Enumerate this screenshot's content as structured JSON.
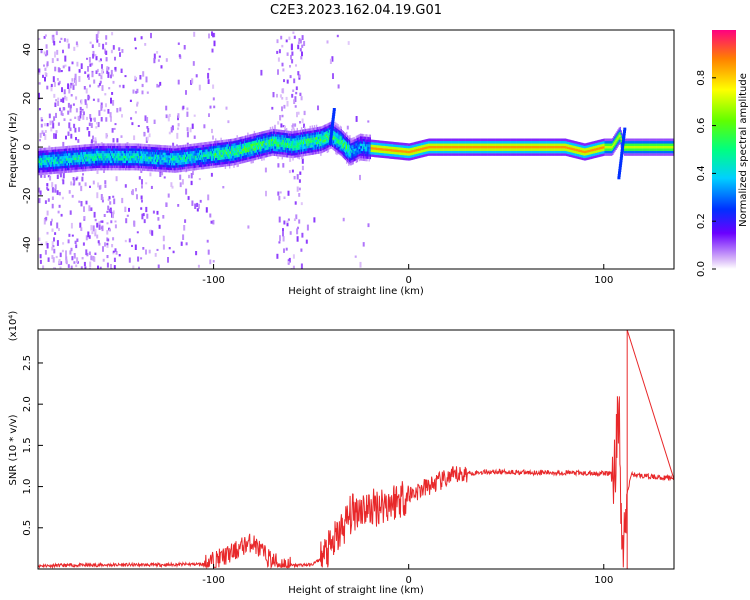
{
  "title": "C2E3.2023.162.04.19.G01",
  "chart_data": [
    {
      "type": "heatmap",
      "xlabel": "Height of straight line (km)",
      "ylabel": "Frequency (Hz)",
      "xlim": [
        -190,
        136
      ],
      "ylim": [
        -50,
        48
      ],
      "xticks": [
        -100,
        0,
        100
      ],
      "yticks": [
        -40,
        -20,
        0,
        20,
        40
      ],
      "colorbar": {
        "label": "Normalized spectral amplitude",
        "range": [
          0.0,
          1.0
        ],
        "ticks": [
          "0.0",
          "0.2",
          "0.4",
          "0.6",
          "0.8"
        ],
        "colormap": "rainbow"
      },
      "ridge": [
        {
          "x": -190,
          "y": -6
        },
        {
          "x": -160,
          "y": -4
        },
        {
          "x": -140,
          "y": -4
        },
        {
          "x": -120,
          "y": -5
        },
        {
          "x": -100,
          "y": -3
        },
        {
          "x": -90,
          "y": -2
        },
        {
          "x": -80,
          "y": 0
        },
        {
          "x": -70,
          "y": 2
        },
        {
          "x": -60,
          "y": 1
        },
        {
          "x": -45,
          "y": 3
        },
        {
          "x": -40,
          "y": 5
        },
        {
          "x": -35,
          "y": 2
        },
        {
          "x": -30,
          "y": -2
        },
        {
          "x": -25,
          "y": 0
        },
        {
          "x": 0,
          "y": -2
        },
        {
          "x": 10,
          "y": 0
        },
        {
          "x": 50,
          "y": 0
        },
        {
          "x": 80,
          "y": 0
        },
        {
          "x": 90,
          "y": -2
        },
        {
          "x": 100,
          "y": 0
        },
        {
          "x": 104,
          "y": 0
        },
        {
          "x": 108,
          "y": 5
        },
        {
          "x": 110,
          "y": 0
        },
        {
          "x": 136,
          "y": 0
        }
      ]
    },
    {
      "type": "line",
      "xlabel": "Height of straight line (km)",
      "ylabel": "SNR (10 * v/v)",
      "exponent_label": "(x10⁴)",
      "xlim": [
        -190,
        136
      ],
      "ylim": [
        0,
        2.9
      ],
      "xticks": [
        -100,
        0,
        100
      ],
      "yticks": [
        "0.5",
        "1.0",
        "1.5",
        "2.0",
        "2.5"
      ],
      "series": [
        {
          "color": "#e8282a",
          "x": [
            -190,
            -150,
            -130,
            -105,
            -100,
            -95,
            -90,
            -85,
            -80,
            -75,
            -70,
            -65,
            -60,
            -55,
            -50,
            -45,
            -40,
            -35,
            -30,
            -25,
            -20,
            -15,
            -10,
            -5,
            0,
            5,
            10,
            15,
            20,
            25,
            30,
            40,
            50,
            60,
            70,
            80,
            90,
            100,
            104,
            106,
            107,
            108,
            109,
            110,
            112,
            114,
            120,
            130,
            136
          ],
          "y": [
            0.04,
            0.05,
            0.05,
            0.06,
            0.1,
            0.15,
            0.2,
            0.28,
            0.33,
            0.2,
            0.1,
            0.05,
            0.04,
            0.05,
            0.05,
            0.12,
            0.25,
            0.45,
            0.65,
            0.75,
            0.72,
            0.78,
            0.8,
            0.85,
            0.9,
            0.95,
            1.0,
            1.05,
            1.1,
            1.14,
            1.16,
            1.18,
            1.18,
            1.17,
            1.17,
            1.17,
            1.16,
            1.16,
            1.16,
            1.2,
            2.0,
            1.7,
            0.4,
            0.2,
            0.9,
            1.15,
            1.13,
            1.11,
            1.1
          ]
        }
      ]
    }
  ]
}
